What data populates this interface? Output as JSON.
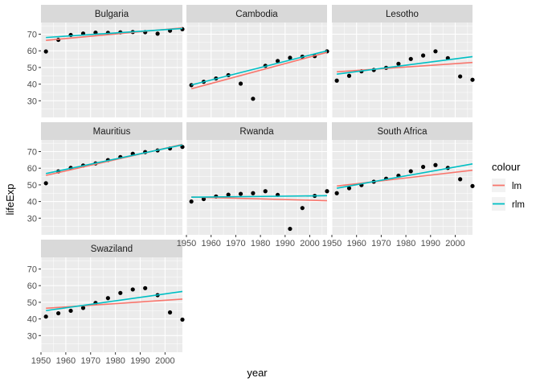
{
  "chart_data": {
    "type": "scatter",
    "xlabel": "year",
    "ylabel": "lifeExp",
    "xlim": [
      1950,
      2007
    ],
    "ylim": [
      20,
      77
    ],
    "x_ticks": [
      1950,
      1960,
      1970,
      1980,
      1990,
      2000
    ],
    "x_tick_labels": [
      "1950",
      "1960",
      "1970",
      "1980",
      "1990",
      "2000"
    ],
    "y_ticks": [
      30,
      40,
      50,
      60,
      70
    ],
    "y_tick_labels": [
      "30",
      "40",
      "50",
      "60",
      "70"
    ],
    "grid": true,
    "legend": {
      "title": "colour",
      "placement": "right",
      "entries": [
        {
          "label": "lm",
          "color": "#F8766D"
        },
        {
          "label": "rlm",
          "color": "#00BFC4"
        }
      ]
    },
    "colors": {
      "panel_bg": "#EBEBEB",
      "strip_bg": "#D9D9D9",
      "grid": "#ffffff",
      "points": "#000000",
      "lm": "#F8766D",
      "rlm": "#00BFC4",
      "axis_text": "#4D4D4D",
      "strip_text": "#1A1A1A"
    },
    "facets": [
      {
        "name": "Bulgaria",
        "points": [
          [
            1952,
            59.6
          ],
          [
            1957,
            66.6
          ],
          [
            1962,
            69.5
          ],
          [
            1967,
            70.4
          ],
          [
            1972,
            70.9
          ],
          [
            1977,
            70.8
          ],
          [
            1982,
            71.1
          ],
          [
            1987,
            71.3
          ],
          [
            1992,
            71.2
          ],
          [
            1997,
            70.3
          ],
          [
            2002,
            72.1
          ],
          [
            2007,
            73.0
          ]
        ],
        "lm": [
          [
            1952,
            66.3
          ],
          [
            2007,
            73.8
          ]
        ],
        "rlm": [
          [
            1952,
            68.0
          ],
          [
            2007,
            73.4
          ]
        ]
      },
      {
        "name": "Cambodia",
        "points": [
          [
            1952,
            39.4
          ],
          [
            1957,
            41.4
          ],
          [
            1962,
            43.4
          ],
          [
            1967,
            45.4
          ],
          [
            1972,
            40.3
          ],
          [
            1977,
            31.2
          ],
          [
            1982,
            51.0
          ],
          [
            1987,
            53.9
          ],
          [
            1992,
            55.8
          ],
          [
            1997,
            56.5
          ],
          [
            2002,
            56.8
          ],
          [
            2007,
            59.7
          ]
        ],
        "lm": [
          [
            1952,
            37.2
          ],
          [
            2007,
            59.1
          ]
        ],
        "rlm": [
          [
            1952,
            39.5
          ],
          [
            2007,
            60.0
          ]
        ]
      },
      {
        "name": "Lesotho",
        "points": [
          [
            1952,
            42.1
          ],
          [
            1957,
            45.0
          ],
          [
            1962,
            47.7
          ],
          [
            1967,
            48.5
          ],
          [
            1972,
            49.8
          ],
          [
            1977,
            52.2
          ],
          [
            1982,
            55.1
          ],
          [
            1987,
            57.2
          ],
          [
            1992,
            59.7
          ],
          [
            1997,
            55.6
          ],
          [
            2002,
            44.6
          ],
          [
            2007,
            42.6
          ]
        ],
        "lm": [
          [
            1952,
            47.4
          ],
          [
            2007,
            53.0
          ]
        ],
        "rlm": [
          [
            1952,
            46.0
          ],
          [
            2007,
            56.5
          ]
        ]
      },
      {
        "name": "Mauritius",
        "points": [
          [
            1952,
            50.99
          ],
          [
            1957,
            58.1
          ],
          [
            1962,
            60.2
          ],
          [
            1967,
            61.6
          ],
          [
            1972,
            62.9
          ],
          [
            1977,
            64.9
          ],
          [
            1982,
            66.7
          ],
          [
            1987,
            68.7
          ],
          [
            1992,
            69.7
          ],
          [
            1997,
            70.7
          ],
          [
            2002,
            71.9
          ],
          [
            2007,
            72.8
          ]
        ],
        "lm": [
          [
            1952,
            55.7
          ],
          [
            2007,
            74.3
          ]
        ],
        "rlm": [
          [
            1952,
            56.8
          ],
          [
            2007,
            74.0
          ]
        ]
      },
      {
        "name": "Rwanda",
        "points": [
          [
            1952,
            40.0
          ],
          [
            1957,
            41.5
          ],
          [
            1962,
            43.0
          ],
          [
            1967,
            44.1
          ],
          [
            1972,
            44.6
          ],
          [
            1977,
            45.0
          ],
          [
            1982,
            46.2
          ],
          [
            1987,
            44.0
          ],
          [
            1992,
            23.6
          ],
          [
            1997,
            36.1
          ],
          [
            2002,
            43.4
          ],
          [
            2007,
            46.2
          ]
        ],
        "lm": [
          [
            1952,
            42.7
          ],
          [
            2007,
            40.5
          ]
        ],
        "rlm": [
          [
            1952,
            42.6
          ],
          [
            2007,
            43.5
          ]
        ]
      },
      {
        "name": "South Africa",
        "points": [
          [
            1952,
            45.0
          ],
          [
            1957,
            48.0
          ],
          [
            1962,
            49.9
          ],
          [
            1967,
            51.9
          ],
          [
            1972,
            53.7
          ],
          [
            1977,
            55.5
          ],
          [
            1982,
            58.2
          ],
          [
            1987,
            60.8
          ],
          [
            1992,
            61.9
          ],
          [
            1997,
            60.2
          ],
          [
            2002,
            53.4
          ],
          [
            2007,
            49.3
          ]
        ],
        "lm": [
          [
            1952,
            49.3
          ],
          [
            2007,
            58.8
          ]
        ],
        "rlm": [
          [
            1952,
            48.0
          ],
          [
            2007,
            62.6
          ]
        ]
      },
      {
        "name": "Swaziland",
        "points": [
          [
            1952,
            41.4
          ],
          [
            1957,
            43.4
          ],
          [
            1962,
            44.9
          ],
          [
            1967,
            46.6
          ],
          [
            1972,
            49.6
          ],
          [
            1977,
            52.5
          ],
          [
            1982,
            55.6
          ],
          [
            1987,
            57.7
          ],
          [
            1992,
            58.5
          ],
          [
            1997,
            54.3
          ],
          [
            2002,
            43.9
          ],
          [
            2007,
            39.6
          ]
        ],
        "lm": [
          [
            1952,
            46.4
          ],
          [
            2007,
            51.9
          ]
        ],
        "rlm": [
          [
            1952,
            45.0
          ],
          [
            2007,
            56.5
          ]
        ]
      }
    ]
  }
}
